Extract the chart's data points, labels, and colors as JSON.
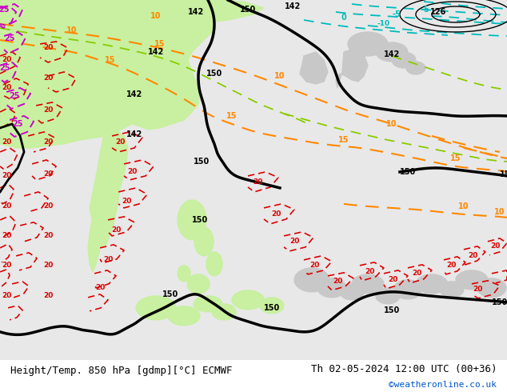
{
  "title_left": "Height/Temp. 850 hPa [gdmp][°C] ECMWF",
  "title_right": "Th 02-05-2024 12:00 UTC (00+36)",
  "watermark": "©weatheronline.co.uk",
  "fig_width": 6.34,
  "fig_height": 4.9,
  "dpi": 100,
  "title_fontsize": 9.0,
  "watermark_fontsize": 8.0,
  "watermark_color": "#0055cc",
  "sea_color": "#e8e8e8",
  "land_gray": "#c8c8c8",
  "green_fill": "#c8f0a0",
  "dark_green_fill": "#a8e080",
  "bottom_bg": "#ffffff"
}
